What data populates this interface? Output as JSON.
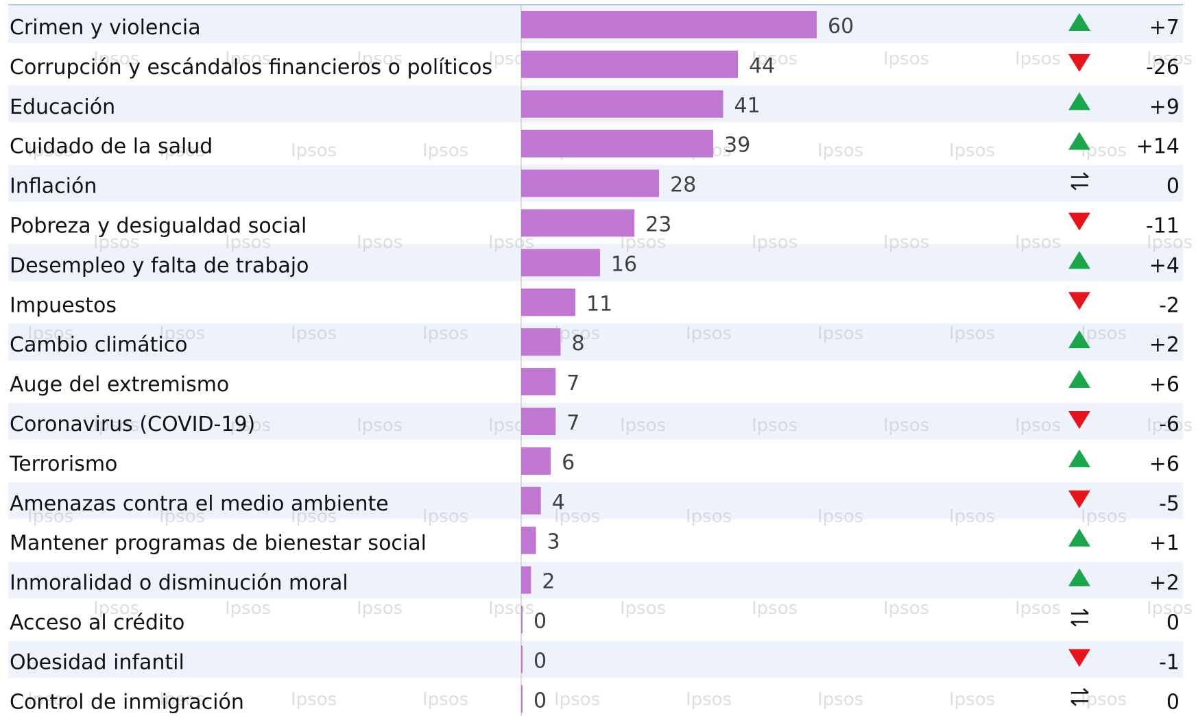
{
  "chart_data": {
    "type": "bar",
    "orientation": "horizontal",
    "categories": [
      "Crimen y violencia",
      "Corrupción y escándalos financieros o políticos",
      "Educación",
      "Cuidado de la salud",
      "Inflación",
      "Pobreza y desigualdad social",
      "Desempleo y falta de trabajo",
      "Impuestos",
      "Cambio climático",
      "Auge del extremismo",
      "Coronavirus (COVID-19)",
      "Terrorismo",
      "Amenazas contra el medio ambiente",
      "Mantener programas de bienestar social",
      "Inmoralidad o disminución moral",
      "Acceso al crédito",
      "Obesidad infantil",
      "Control de inmigración"
    ],
    "values": [
      60,
      44,
      41,
      39,
      28,
      23,
      16,
      11,
      8,
      7,
      7,
      6,
      4,
      3,
      2,
      0,
      0,
      0
    ],
    "changes": [
      "+7",
      "-26",
      "+9",
      "+14",
      "0",
      "-11",
      "+4",
      "-2",
      "+2",
      "+6",
      "-6",
      "+6",
      "-5",
      "+1",
      "+2",
      "0",
      "-1",
      "0"
    ],
    "trend_icons": [
      "up-triangle-icon",
      "down-triangle-icon",
      "up-triangle-icon",
      "up-triangle-icon",
      "no-change-arrows-icon",
      "down-triangle-icon",
      "up-triangle-icon",
      "down-triangle-icon",
      "up-triangle-icon",
      "up-triangle-icon",
      "down-triangle-icon",
      "up-triangle-icon",
      "down-triangle-icon",
      "up-triangle-icon",
      "up-triangle-icon",
      "no-change-arrows-icon",
      "down-triangle-icon",
      "no-change-arrows-icon"
    ],
    "xlim": [
      0,
      60
    ],
    "grid": false,
    "legend": "none",
    "watermark": "Ipsos",
    "colors": {
      "bar": "#bf77d2",
      "up": "#1aa64a",
      "down": "#e8141b",
      "stripe": "#eef3fb",
      "border": "#a9c5ea",
      "axis": "#d9d9d9"
    }
  }
}
